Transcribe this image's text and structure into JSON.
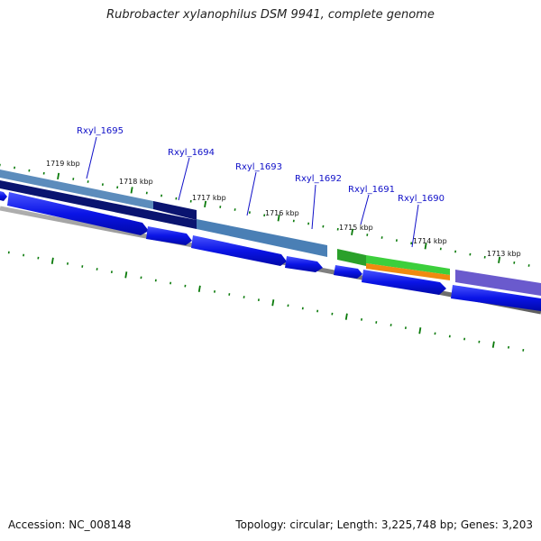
{
  "title": "Rubrobacter xylanophilus DSM 9941, complete genome",
  "footer": {
    "accession": "Accession: NC_008148",
    "summary": "Topology: circular; Length: 3,225,748 bp; Genes: 3,203"
  },
  "kbp_labels": [
    "1719 kbp",
    "1718 kbp",
    "1717 kbp",
    "1716 kbp",
    "1715 kbp",
    "1714 kbp",
    "1713 kbp"
  ],
  "gene_labels": [
    "Rxyl_1695",
    "Rxyl_1694",
    "Rxyl_1693",
    "Rxyl_1692",
    "Rxyl_1691",
    "Rxyl_1690"
  ],
  "colors": {
    "gene_arrow": "#0a14e6",
    "cds_steelblue": "#4a7fb5",
    "cds_navy": "#0a1470",
    "cds_green": "#3ccf3c",
    "cds_orange": "#f08a10",
    "cds_purple": "#6a5acd",
    "backbone": "#808080",
    "tick": "#0a7a0a",
    "label_link": "#1010c8"
  }
}
